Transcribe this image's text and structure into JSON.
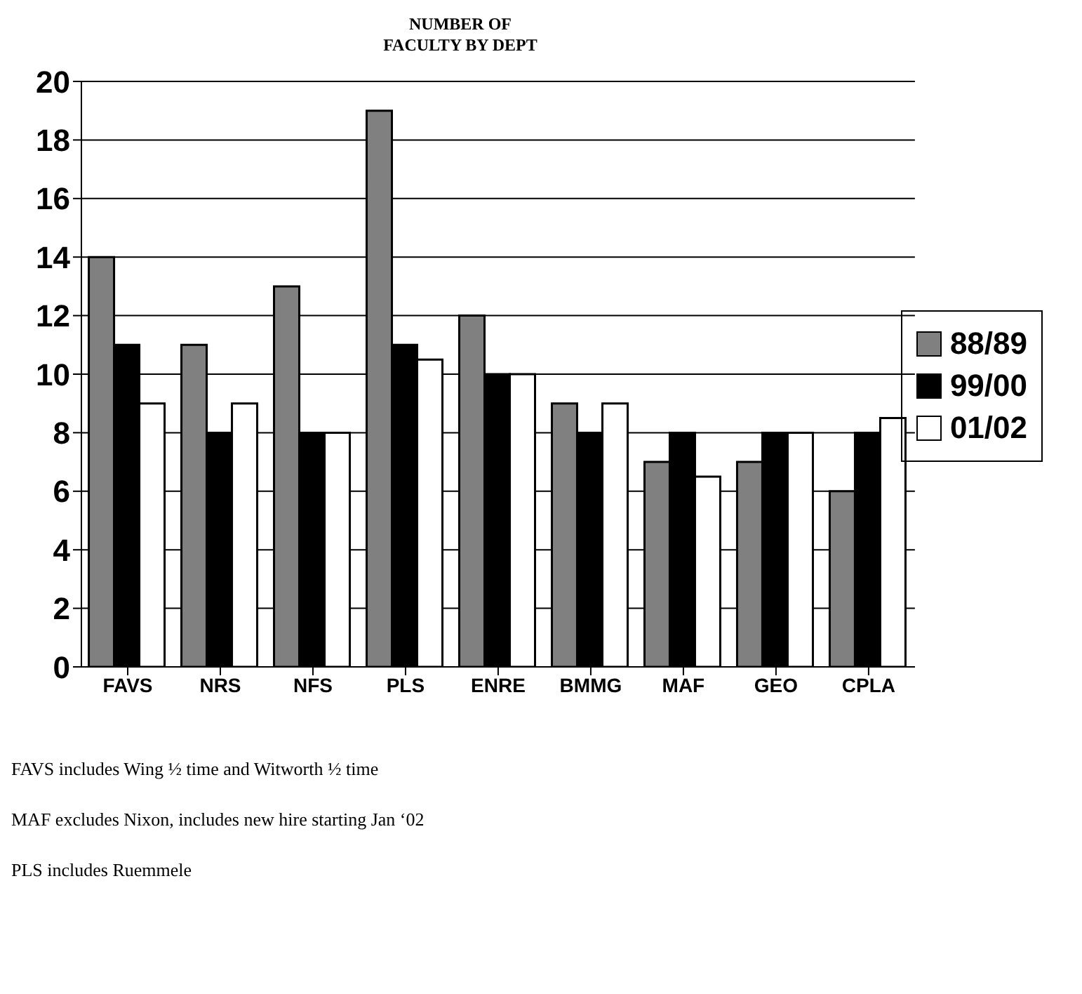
{
  "chart_data": {
    "type": "bar",
    "title": "NUMBER OF FACULTY BY DEPT",
    "categories": [
      "FAVS",
      "NRS",
      "NFS",
      "PLS",
      "ENRE",
      "BMMG",
      "MAF",
      "GEO",
      "CPLA"
    ],
    "series": [
      {
        "name": "88/89",
        "color": "#808080",
        "values": [
          14,
          11,
          13,
          19,
          12,
          9,
          7,
          7,
          6
        ]
      },
      {
        "name": "99/00",
        "color": "#000000",
        "values": [
          11,
          8,
          8,
          11,
          10,
          8,
          8,
          8,
          8
        ]
      },
      {
        "name": "01/02",
        "color": "#ffffff",
        "values": [
          9,
          9,
          8,
          10.5,
          10,
          9,
          6.5,
          8,
          8.5
        ]
      }
    ],
    "ylim": [
      0,
      20
    ],
    "yticks": [
      0,
      2,
      4,
      6,
      8,
      10,
      12,
      14,
      16,
      18,
      20
    ],
    "grid": "y",
    "legend": "right",
    "annotations": [
      "FAVS includes Wing ½ time and Witworth ½ time",
      "MAF excludes Nixon, includes new hire starting Jan ‘02",
      "PLS includes Ruemmele"
    ]
  }
}
